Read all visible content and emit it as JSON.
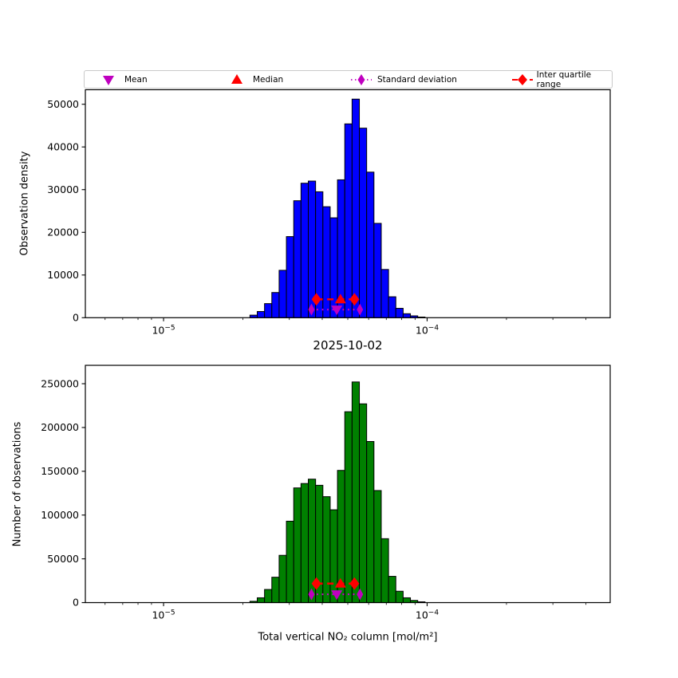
{
  "figure": {
    "title": "2025-10-02",
    "xlabel": "Total vertical NO₂ column [mol/m²]"
  },
  "legend": {
    "items": [
      {
        "label": "Mean",
        "marker": "triangle-down",
        "color": "#bf00bf"
      },
      {
        "label": "Median",
        "marker": "triangle-up",
        "color": "#ff0000"
      },
      {
        "label": "Standard deviation",
        "marker": "thin-diamond-dotted",
        "color": "#bf00bf"
      },
      {
        "label": "Inter quartile range",
        "marker": "diamond-line",
        "color": "#ff0000"
      }
    ]
  },
  "chart_data": [
    {
      "type": "bar",
      "ylabel": "Observation density",
      "x_scale": "log",
      "xlim": [
        5.05e-06,
        0.000495
      ],
      "ylim": [
        0,
        53400
      ],
      "yticks": [
        0,
        10000,
        20000,
        30000,
        40000,
        50000
      ],
      "xticks_major": [
        1e-05,
        0.0001
      ],
      "grid": false,
      "bar_color": "#0000ff",
      "edge_color": "#000000",
      "bins": {
        "start": 2.127e-05,
        "ratio": 1.0658
      },
      "counts": [
        600,
        1450,
        3300,
        5900,
        11100,
        19000,
        27400,
        31500,
        32000,
        29500,
        26000,
        23400,
        32300,
        45400,
        51200,
        44400,
        34100,
        22100,
        11300,
        4900,
        2200,
        930,
        430,
        150
      ],
      "stats": {
        "mean": 4.54e-05,
        "median": 4.69e-05,
        "std_low": 3.64e-05,
        "std_high": 5.56e-05,
        "q1": 3.8e-05,
        "q3": 5.3e-05
      },
      "marker_rows": {
        "iqr_y": 4300,
        "std_y": 1900
      }
    },
    {
      "type": "bar",
      "ylabel": "Number of observations",
      "x_scale": "log",
      "xlim": [
        5.05e-06,
        0.000495
      ],
      "ylim": [
        0,
        271000
      ],
      "yticks": [
        0,
        50000,
        100000,
        150000,
        200000,
        250000
      ],
      "xticks_major": [
        1e-05,
        0.0001
      ],
      "grid": false,
      "bar_color": "#008000",
      "edge_color": "#000000",
      "bins": {
        "start": 2.127e-05,
        "ratio": 1.0658
      },
      "counts": [
        1500,
        5500,
        15000,
        29000,
        54000,
        93000,
        131000,
        136000,
        141000,
        134000,
        121000,
        106000,
        151000,
        218000,
        252000,
        227000,
        184000,
        128000,
        73000,
        30000,
        13000,
        5500,
        2500,
        900
      ],
      "stats": {
        "mean": 4.54e-05,
        "median": 4.69e-05,
        "std_low": 3.64e-05,
        "std_high": 5.56e-05,
        "q1": 3.8e-05,
        "q3": 5.3e-05
      },
      "marker_rows": {
        "iqr_y": 21700,
        "std_y": 9500
      }
    }
  ]
}
